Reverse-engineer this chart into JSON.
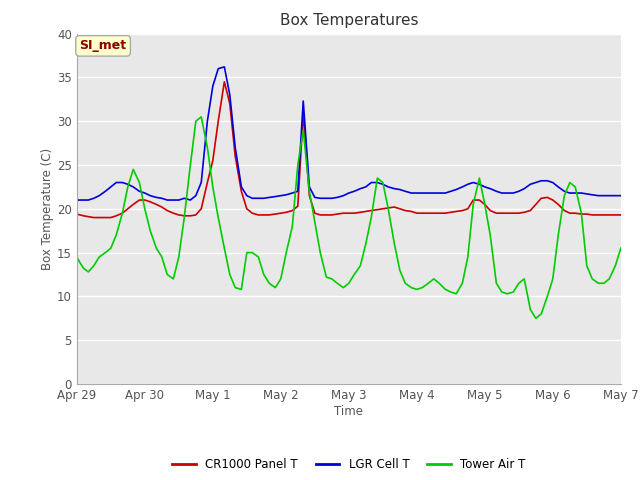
{
  "title": "Box Temperatures",
  "xlabel": "Time",
  "ylabel": "Box Temperature (C)",
  "ylim": [
    0,
    40
  ],
  "yticks": [
    0,
    5,
    10,
    15,
    20,
    25,
    30,
    35,
    40
  ],
  "x_labels": [
    "Apr 29",
    "Apr 30",
    "May 1",
    "May 2",
    "May 3",
    "May 4",
    "May 5",
    "May 6",
    "May 7"
  ],
  "plot_bg_color": "#e8e8e8",
  "fig_bg_color": "#ffffff",
  "annotation_text": "SI_met",
  "annotation_color": "#8b0000",
  "annotation_bg": "#ffffcc",
  "annotation_border": "#aaaaaa",
  "legend_entries": [
    "CR1000 Panel T",
    "LGR Cell T",
    "Tower Air T"
  ],
  "legend_colors": [
    "#cc0000",
    "#0000dd",
    "#00cc00"
  ],
  "line_width": 1.2,
  "cr1000_x": [
    0.0,
    0.05,
    0.1,
    0.17,
    0.25,
    0.33,
    0.42,
    0.5,
    0.58,
    0.67,
    0.75,
    0.83,
    0.92,
    1.0,
    1.08,
    1.17,
    1.25,
    1.33,
    1.42,
    1.5,
    1.58,
    1.67,
    1.75,
    1.83,
    1.92,
    2.0,
    2.08,
    2.17,
    2.25,
    2.33,
    2.42,
    2.5,
    2.58,
    2.67,
    2.75,
    2.83,
    2.92,
    3.0,
    3.08,
    3.17,
    3.25,
    3.33,
    3.42,
    3.5,
    3.58,
    3.67,
    3.75,
    3.83,
    3.92,
    4.0,
    4.08,
    4.17,
    4.25,
    4.33,
    4.42,
    4.5,
    4.58,
    4.67,
    4.75,
    4.83,
    4.92,
    5.0,
    5.08,
    5.17,
    5.25,
    5.33,
    5.42,
    5.5,
    5.58,
    5.67,
    5.75,
    5.83,
    5.92,
    6.0,
    6.08,
    6.17,
    6.25,
    6.33,
    6.42,
    6.5,
    6.58,
    6.67,
    6.75,
    6.83,
    6.92,
    7.0,
    7.08,
    7.17,
    7.25,
    7.33,
    7.42,
    7.5,
    7.58,
    7.67,
    7.75,
    7.83,
    7.92,
    8.0
  ],
  "cr1000_y": [
    19.4,
    19.3,
    19.2,
    19.1,
    19.0,
    19.0,
    19.0,
    19.0,
    19.2,
    19.5,
    20.0,
    20.5,
    21.0,
    21.0,
    20.8,
    20.5,
    20.2,
    19.8,
    19.5,
    19.3,
    19.2,
    19.2,
    19.3,
    20.0,
    23.0,
    25.5,
    30.0,
    34.5,
    32.0,
    26.0,
    22.0,
    20.0,
    19.5,
    19.3,
    19.3,
    19.3,
    19.4,
    19.5,
    19.6,
    19.8,
    20.3,
    31.0,
    21.5,
    19.5,
    19.3,
    19.3,
    19.3,
    19.4,
    19.5,
    19.5,
    19.5,
    19.6,
    19.7,
    19.8,
    19.9,
    20.0,
    20.1,
    20.2,
    20.0,
    19.8,
    19.7,
    19.5,
    19.5,
    19.5,
    19.5,
    19.5,
    19.5,
    19.6,
    19.7,
    19.8,
    20.0,
    21.0,
    21.0,
    20.5,
    19.8,
    19.5,
    19.5,
    19.5,
    19.5,
    19.5,
    19.6,
    19.8,
    20.5,
    21.2,
    21.3,
    21.0,
    20.5,
    19.8,
    19.5,
    19.5,
    19.4,
    19.4,
    19.3,
    19.3,
    19.3,
    19.3,
    19.3,
    19.3
  ],
  "lgr_x": [
    0.0,
    0.05,
    0.1,
    0.17,
    0.25,
    0.33,
    0.42,
    0.5,
    0.58,
    0.67,
    0.75,
    0.83,
    0.92,
    1.0,
    1.08,
    1.17,
    1.25,
    1.33,
    1.42,
    1.5,
    1.58,
    1.67,
    1.75,
    1.83,
    1.92,
    2.0,
    2.08,
    2.17,
    2.25,
    2.33,
    2.42,
    2.5,
    2.58,
    2.67,
    2.75,
    2.83,
    2.92,
    3.0,
    3.08,
    3.17,
    3.25,
    3.33,
    3.42,
    3.5,
    3.58,
    3.67,
    3.75,
    3.83,
    3.92,
    4.0,
    4.08,
    4.17,
    4.25,
    4.33,
    4.42,
    4.5,
    4.58,
    4.67,
    4.75,
    4.83,
    4.92,
    5.0,
    5.08,
    5.17,
    5.25,
    5.33,
    5.42,
    5.5,
    5.58,
    5.67,
    5.75,
    5.83,
    5.92,
    6.0,
    6.08,
    6.17,
    6.25,
    6.33,
    6.42,
    6.5,
    6.58,
    6.67,
    6.75,
    6.83,
    6.92,
    7.0,
    7.08,
    7.17,
    7.25,
    7.33,
    7.42,
    7.5,
    7.58,
    7.67,
    7.75,
    7.83,
    7.92,
    8.0
  ],
  "lgr_y": [
    21.0,
    21.0,
    21.0,
    21.0,
    21.2,
    21.5,
    22.0,
    22.5,
    23.0,
    23.0,
    22.8,
    22.5,
    22.0,
    21.8,
    21.5,
    21.3,
    21.2,
    21.0,
    21.0,
    21.0,
    21.2,
    21.0,
    21.5,
    23.0,
    30.0,
    34.0,
    36.0,
    36.2,
    33.0,
    27.0,
    22.5,
    21.5,
    21.2,
    21.2,
    21.2,
    21.3,
    21.4,
    21.5,
    21.6,
    21.8,
    22.0,
    32.3,
    22.5,
    21.3,
    21.2,
    21.2,
    21.2,
    21.3,
    21.5,
    21.8,
    22.0,
    22.3,
    22.5,
    23.0,
    23.0,
    22.8,
    22.5,
    22.3,
    22.2,
    22.0,
    21.8,
    21.8,
    21.8,
    21.8,
    21.8,
    21.8,
    21.8,
    22.0,
    22.2,
    22.5,
    22.8,
    23.0,
    22.8,
    22.5,
    22.3,
    22.0,
    21.8,
    21.8,
    21.8,
    22.0,
    22.3,
    22.8,
    23.0,
    23.2,
    23.2,
    23.0,
    22.5,
    22.0,
    21.8,
    21.8,
    21.8,
    21.7,
    21.6,
    21.5,
    21.5,
    21.5,
    21.5,
    21.5
  ],
  "tower_x": [
    0.0,
    0.05,
    0.1,
    0.17,
    0.25,
    0.33,
    0.42,
    0.5,
    0.58,
    0.67,
    0.75,
    0.83,
    0.92,
    1.0,
    1.08,
    1.17,
    1.25,
    1.33,
    1.42,
    1.5,
    1.58,
    1.67,
    1.75,
    1.83,
    1.92,
    2.0,
    2.08,
    2.17,
    2.25,
    2.33,
    2.42,
    2.5,
    2.58,
    2.67,
    2.75,
    2.83,
    2.92,
    3.0,
    3.08,
    3.17,
    3.25,
    3.33,
    3.42,
    3.5,
    3.58,
    3.67,
    3.75,
    3.83,
    3.92,
    4.0,
    4.08,
    4.17,
    4.25,
    4.33,
    4.42,
    4.5,
    4.58,
    4.67,
    4.75,
    4.83,
    4.92,
    5.0,
    5.08,
    5.17,
    5.25,
    5.33,
    5.42,
    5.5,
    5.58,
    5.67,
    5.75,
    5.83,
    5.92,
    6.0,
    6.08,
    6.17,
    6.25,
    6.33,
    6.42,
    6.5,
    6.58,
    6.67,
    6.75,
    6.83,
    6.92,
    7.0,
    7.08,
    7.17,
    7.25,
    7.33,
    7.42,
    7.5,
    7.58,
    7.67,
    7.75,
    7.83,
    7.92,
    8.0
  ],
  "tower_y": [
    14.5,
    13.8,
    13.2,
    12.8,
    13.5,
    14.5,
    15.0,
    15.5,
    17.0,
    19.5,
    22.5,
    24.5,
    23.0,
    20.0,
    17.5,
    15.5,
    14.5,
    12.5,
    12.0,
    14.5,
    19.0,
    25.0,
    30.0,
    30.5,
    27.0,
    22.5,
    19.0,
    15.5,
    12.5,
    11.0,
    10.8,
    15.0,
    15.0,
    14.5,
    12.5,
    11.5,
    11.0,
    12.0,
    15.0,
    18.0,
    25.0,
    29.0,
    22.0,
    18.5,
    15.0,
    12.2,
    12.0,
    11.5,
    11.0,
    11.5,
    12.5,
    13.5,
    16.0,
    19.0,
    23.5,
    23.0,
    20.0,
    16.0,
    13.0,
    11.5,
    11.0,
    10.8,
    11.0,
    11.5,
    12.0,
    11.5,
    10.8,
    10.5,
    10.3,
    11.5,
    14.5,
    20.5,
    23.5,
    20.5,
    17.0,
    11.5,
    10.5,
    10.3,
    10.5,
    11.5,
    12.0,
    8.5,
    7.5,
    8.0,
    10.0,
    12.0,
    17.0,
    21.5,
    23.0,
    22.5,
    19.5,
    13.5,
    12.0,
    11.5,
    11.5,
    12.0,
    13.5,
    15.5
  ],
  "x_tick_positions": [
    0,
    1,
    2,
    3,
    4,
    5,
    6,
    7,
    8
  ],
  "figsize": [
    6.4,
    4.8
  ],
  "dpi": 100
}
